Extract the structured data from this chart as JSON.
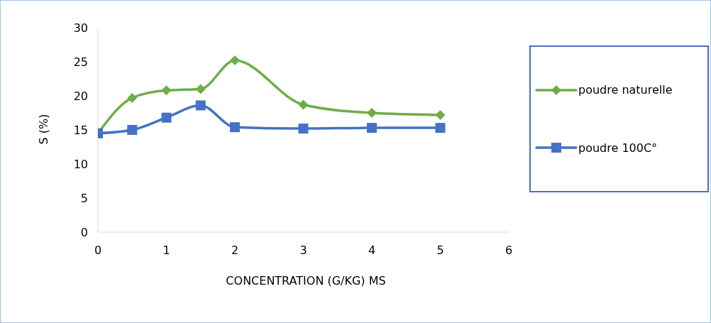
{
  "chart_data": {
    "type": "line",
    "xlabel": "CONCENTRATION (G/KG) MS",
    "ylabel": "S (%)",
    "x": [
      0,
      0.5,
      1,
      1.5,
      2,
      3,
      4,
      5
    ],
    "series": [
      {
        "name": "poudre naturelle",
        "color": "#70ad47",
        "marker": "diamond",
        "values": [
          14.5,
          19.7,
          20.8,
          21.0,
          25.2,
          18.7,
          17.5,
          17.2
        ]
      },
      {
        "name": "poudre 100C°",
        "color": "#4472c4",
        "marker": "square",
        "values": [
          14.5,
          15.0,
          16.8,
          18.6,
          15.4,
          15.2,
          15.3,
          15.3
        ]
      }
    ],
    "xlim": [
      0,
      6
    ],
    "xticks": [
      0,
      1,
      2,
      3,
      4,
      5,
      6
    ],
    "ylim": [
      0,
      30
    ],
    "yticks": [
      0,
      5,
      10,
      15,
      20,
      25,
      30
    ],
    "grid": false,
    "legend": "right",
    "line_style": "solid"
  }
}
